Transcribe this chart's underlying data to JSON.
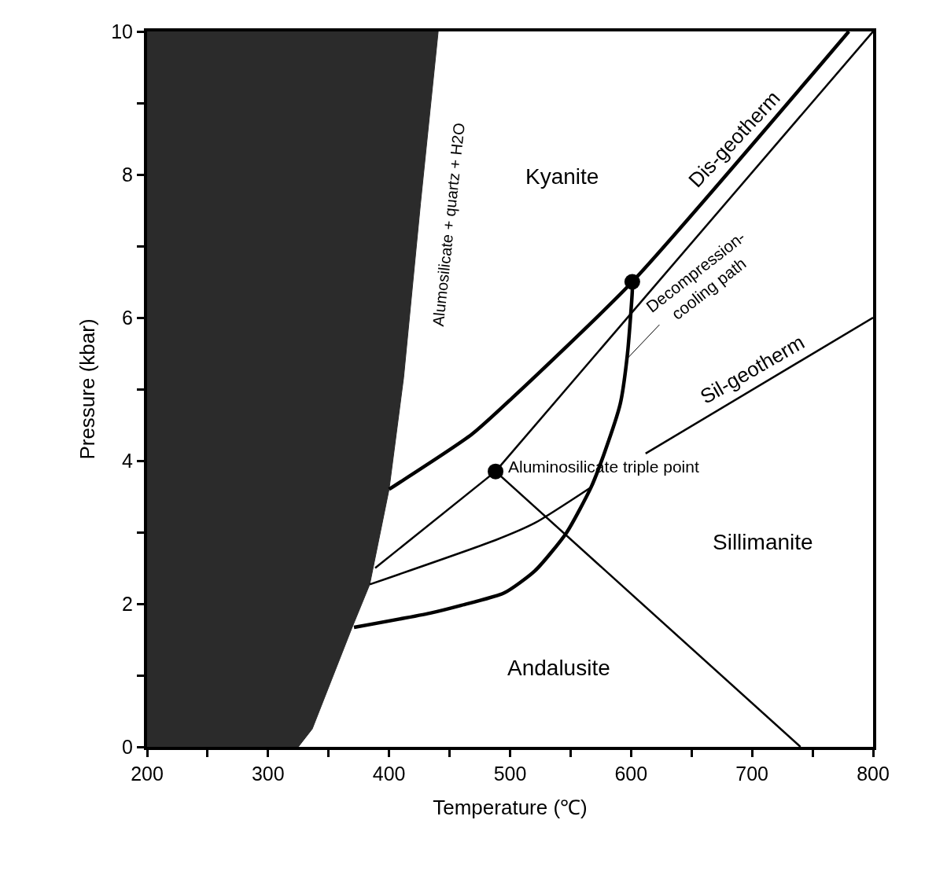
{
  "chart_data": {
    "type": "line",
    "xlabel": "Temperature (℃)",
    "ylabel": "Pressure (kbar)",
    "xlim": [
      200,
      800
    ],
    "ylim": [
      0,
      10
    ],
    "xticks": [
      200,
      {
        "value": 250,
        "label": null
      },
      300,
      {
        "value": 350,
        "label": null
      },
      400,
      {
        "value": 450,
        "label": null
      },
      500,
      {
        "value": 550,
        "label": null
      },
      600,
      {
        "value": 650,
        "label": null
      },
      700,
      {
        "value": 750,
        "label": null
      },
      800
    ],
    "yticks": [
      0,
      {
        "value": 1,
        "label": null
      },
      2,
      {
        "value": 3,
        "label": null
      },
      4,
      {
        "value": 5,
        "label": null
      },
      6,
      {
        "value": 7,
        "label": null
      },
      8,
      {
        "value": 9,
        "label": null
      },
      10
    ],
    "marker": "none",
    "line_style": "solid",
    "series": [
      {
        "type": "area",
        "color": "#2b2b2b",
        "x": [
          325,
          336.5,
          369,
          384,
          400,
          412,
          426,
          440.6
        ],
        "values": [
          0,
          0.25,
          1.65,
          2.27,
          3.6,
          5.16,
          7.6,
          10
        ]
      },
      {
        "color": "#000000",
        "x": [
          400,
          468.5,
          502,
          601,
          780
        ],
        "values": [
          3.6,
          4.37,
          4.88,
          6.5,
          10
        ]
      },
      {
        "color": "#000000",
        "x": [
          488,
          800
        ],
        "values": [
          3.85,
          10
        ]
      },
      {
        "color": "#000000",
        "x": [
          388.5,
          488
        ],
        "values": [
          2.5,
          3.85
        ]
      },
      {
        "color": "#000000",
        "x": [
          488,
          740
        ],
        "values": [
          3.85,
          0
        ]
      },
      {
        "color": "#000000",
        "x": [
          612,
          800
        ],
        "values": [
          4.1,
          6.0
        ]
      },
      {
        "color": "#000000",
        "x": [
          384,
          488,
          520.5,
          567
        ],
        "values": [
          2.27,
          2.89,
          3.13,
          3.63
        ]
      },
      {
        "color": "#000000",
        "x": [
          601,
          601,
          597,
          591,
          578,
          567,
          546.5,
          520.5,
          495,
          460,
          434,
          371
        ],
        "values": [
          6.5,
          6.37,
          5.49,
          4.79,
          4.11,
          3.63,
          2.99,
          2.46,
          2.15,
          1.98,
          1.87,
          1.67
        ]
      },
      {
        "type": "scatter",
        "marker": "circle",
        "color": "#000000",
        "x": [
          488,
          601
        ],
        "values": [
          3.85,
          6.5
        ]
      }
    ],
    "annotations": [
      "Kyanite",
      "Sillimanite",
      "Andalusite",
      "Aluminosilicate triple point",
      "Dis-geotherm",
      "Sil-geotherm",
      "Alumosilicate + quartz + H2O",
      {
        "text": "Decompression-\ncooling path",
        "x": 597,
        "y": 5.43
      }
    ]
  }
}
